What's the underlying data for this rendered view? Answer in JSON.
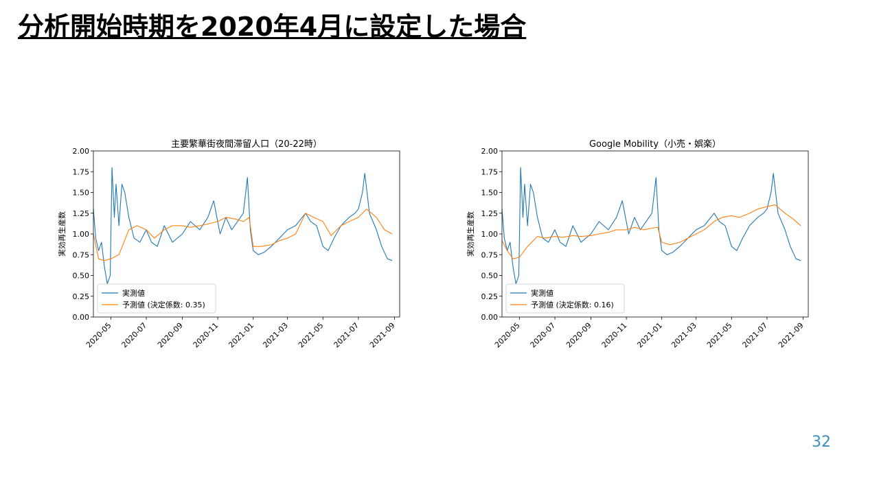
{
  "slide": {
    "title": "分析開始時期を2020年4月に設定した場合",
    "page_number": "32"
  },
  "colors": {
    "actual": "#1f77b4",
    "predicted": "#ff7f0e",
    "page_number": "#3b8ec3"
  },
  "chart_data": [
    {
      "type": "line",
      "title": "主要繁華街夜間滞留人口（20-22時）",
      "ylabel": "実効再生産数",
      "ylim": [
        0,
        2
      ],
      "yticks": [
        "0.00",
        "0.25",
        "0.50",
        "0.75",
        "1.00",
        "1.25",
        "1.50",
        "1.75",
        "2.00"
      ],
      "xticks": [
        "2020-05",
        "2020-07",
        "2020-09",
        "2020-11",
        "2021-01",
        "2021-03",
        "2021-05",
        "2021-07",
        "2021-09"
      ],
      "legend_position": "lower left",
      "grid": false,
      "series": [
        {
          "name": "実測値",
          "x": [
            "2020-04-01",
            "2020-04-05",
            "2020-04-10",
            "2020-04-15",
            "2020-04-20",
            "2020-04-25",
            "2020-04-30",
            "2020-05-03",
            "2020-05-07",
            "2020-05-10",
            "2020-05-15",
            "2020-05-20",
            "2020-05-25",
            "2020-06-01",
            "2020-06-10",
            "2020-06-20",
            "2020-07-01",
            "2020-07-10",
            "2020-07-20",
            "2020-08-01",
            "2020-08-15",
            "2020-09-01",
            "2020-09-15",
            "2020-10-01",
            "2020-10-15",
            "2020-10-25",
            "2020-11-05",
            "2020-11-15",
            "2020-11-25",
            "2020-12-05",
            "2020-12-15",
            "2020-12-22",
            "2020-12-27",
            "2021-01-01",
            "2021-01-10",
            "2021-01-20",
            "2021-02-01",
            "2021-02-15",
            "2021-03-01",
            "2021-03-15",
            "2021-04-01",
            "2021-04-10",
            "2021-04-20",
            "2021-05-01",
            "2021-05-10",
            "2021-05-20",
            "2021-06-01",
            "2021-06-15",
            "2021-06-25",
            "2021-07-01",
            "2021-07-08",
            "2021-07-12",
            "2021-07-20",
            "2021-08-01",
            "2021-08-10",
            "2021-08-20",
            "2021-08-28"
          ],
          "y": [
            1.3,
            0.95,
            0.8,
            0.9,
            0.6,
            0.4,
            0.5,
            1.8,
            1.2,
            1.6,
            1.1,
            1.6,
            1.5,
            1.2,
            0.95,
            0.9,
            1.05,
            0.9,
            0.85,
            1.1,
            0.9,
            1.0,
            1.15,
            1.05,
            1.2,
            1.4,
            1.0,
            1.2,
            1.05,
            1.15,
            1.25,
            1.68,
            1.05,
            0.8,
            0.75,
            0.78,
            0.85,
            0.95,
            1.05,
            1.1,
            1.25,
            1.15,
            1.1,
            0.85,
            0.8,
            0.95,
            1.1,
            1.2,
            1.25,
            1.3,
            1.5,
            1.73,
            1.25,
            1.05,
            0.85,
            0.7,
            0.68
          ]
        },
        {
          "name": "予測値 (決定係数: 0.35)",
          "x": [
            "2020-04-01",
            "2020-04-10",
            "2020-04-20",
            "2020-05-01",
            "2020-05-15",
            "2020-06-01",
            "2020-06-15",
            "2020-07-01",
            "2020-07-15",
            "2020-08-01",
            "2020-08-15",
            "2020-09-01",
            "2020-09-15",
            "2020-10-01",
            "2020-10-15",
            "2020-11-01",
            "2020-11-15",
            "2020-12-01",
            "2020-12-15",
            "2020-12-25",
            "2021-01-01",
            "2021-01-15",
            "2021-02-01",
            "2021-02-15",
            "2021-03-01",
            "2021-03-15",
            "2021-04-01",
            "2021-04-15",
            "2021-05-01",
            "2021-05-15",
            "2021-06-01",
            "2021-06-15",
            "2021-07-01",
            "2021-07-15",
            "2021-08-01",
            "2021-08-15",
            "2021-08-28"
          ],
          "y": [
            1.0,
            0.7,
            0.68,
            0.7,
            0.75,
            1.05,
            1.1,
            1.05,
            0.95,
            1.05,
            1.1,
            1.1,
            1.08,
            1.1,
            1.12,
            1.15,
            1.2,
            1.18,
            1.15,
            1.2,
            0.85,
            0.85,
            0.87,
            0.92,
            0.95,
            1.0,
            1.25,
            1.2,
            1.15,
            0.98,
            1.1,
            1.15,
            1.2,
            1.3,
            1.2,
            1.05,
            1.0
          ]
        }
      ]
    },
    {
      "type": "line",
      "title": "Google Mobility（小売・娯楽）",
      "ylabel": "実効再生産数",
      "ylim": [
        0,
        2
      ],
      "yticks": [
        "0.00",
        "0.25",
        "0.50",
        "0.75",
        "1.00",
        "1.25",
        "1.50",
        "1.75",
        "2.00"
      ],
      "xticks": [
        "2020-05",
        "2020-07",
        "2020-09",
        "2020-11",
        "2021-01",
        "2021-03",
        "2021-05",
        "2021-07",
        "2021-09"
      ],
      "legend_position": "lower left",
      "grid": false,
      "series": [
        {
          "name": "実測値",
          "x": [
            "2020-04-01",
            "2020-04-05",
            "2020-04-10",
            "2020-04-15",
            "2020-04-20",
            "2020-04-25",
            "2020-04-30",
            "2020-05-03",
            "2020-05-07",
            "2020-05-10",
            "2020-05-15",
            "2020-05-20",
            "2020-05-25",
            "2020-06-01",
            "2020-06-10",
            "2020-06-20",
            "2020-07-01",
            "2020-07-10",
            "2020-07-20",
            "2020-08-01",
            "2020-08-15",
            "2020-09-01",
            "2020-09-15",
            "2020-10-01",
            "2020-10-15",
            "2020-10-25",
            "2020-11-05",
            "2020-11-15",
            "2020-11-25",
            "2020-12-05",
            "2020-12-15",
            "2020-12-22",
            "2020-12-27",
            "2021-01-01",
            "2021-01-10",
            "2021-01-20",
            "2021-02-01",
            "2021-02-15",
            "2021-03-01",
            "2021-03-15",
            "2021-04-01",
            "2021-04-10",
            "2021-04-20",
            "2021-05-01",
            "2021-05-10",
            "2021-05-20",
            "2021-06-01",
            "2021-06-15",
            "2021-06-25",
            "2021-07-01",
            "2021-07-08",
            "2021-07-12",
            "2021-07-20",
            "2021-08-01",
            "2021-08-10",
            "2021-08-20",
            "2021-08-28"
          ],
          "y": [
            1.3,
            0.95,
            0.8,
            0.9,
            0.6,
            0.4,
            0.5,
            1.8,
            1.2,
            1.6,
            1.1,
            1.6,
            1.5,
            1.2,
            0.95,
            0.9,
            1.05,
            0.9,
            0.85,
            1.1,
            0.9,
            1.0,
            1.15,
            1.05,
            1.2,
            1.4,
            1.0,
            1.2,
            1.05,
            1.15,
            1.25,
            1.68,
            1.05,
            0.8,
            0.75,
            0.78,
            0.85,
            0.95,
            1.05,
            1.1,
            1.25,
            1.15,
            1.1,
            0.85,
            0.8,
            0.95,
            1.1,
            1.2,
            1.25,
            1.3,
            1.5,
            1.73,
            1.25,
            1.05,
            0.85,
            0.7,
            0.68
          ]
        },
        {
          "name": "予測値 (決定係数: 0.16)",
          "x": [
            "2020-04-01",
            "2020-04-10",
            "2020-04-20",
            "2020-05-01",
            "2020-05-15",
            "2020-06-01",
            "2020-06-15",
            "2020-07-01",
            "2020-07-15",
            "2020-08-01",
            "2020-08-15",
            "2020-09-01",
            "2020-09-15",
            "2020-10-01",
            "2020-10-15",
            "2020-11-01",
            "2020-11-15",
            "2020-12-01",
            "2020-12-15",
            "2020-12-25",
            "2021-01-01",
            "2021-01-15",
            "2021-02-01",
            "2021-02-15",
            "2021-03-01",
            "2021-03-15",
            "2021-04-01",
            "2021-04-15",
            "2021-05-01",
            "2021-05-15",
            "2021-06-01",
            "2021-06-15",
            "2021-07-01",
            "2021-07-15",
            "2021-08-01",
            "2021-08-15",
            "2021-08-28"
          ],
          "y": [
            0.92,
            0.8,
            0.7,
            0.72,
            0.85,
            0.97,
            0.95,
            0.97,
            0.96,
            0.98,
            0.97,
            0.98,
            1.0,
            1.02,
            1.05,
            1.05,
            1.08,
            1.05,
            1.07,
            1.08,
            0.9,
            0.87,
            0.9,
            0.95,
            1.0,
            1.05,
            1.15,
            1.2,
            1.22,
            1.2,
            1.25,
            1.3,
            1.33,
            1.35,
            1.25,
            1.18,
            1.1
          ]
        }
      ]
    }
  ]
}
